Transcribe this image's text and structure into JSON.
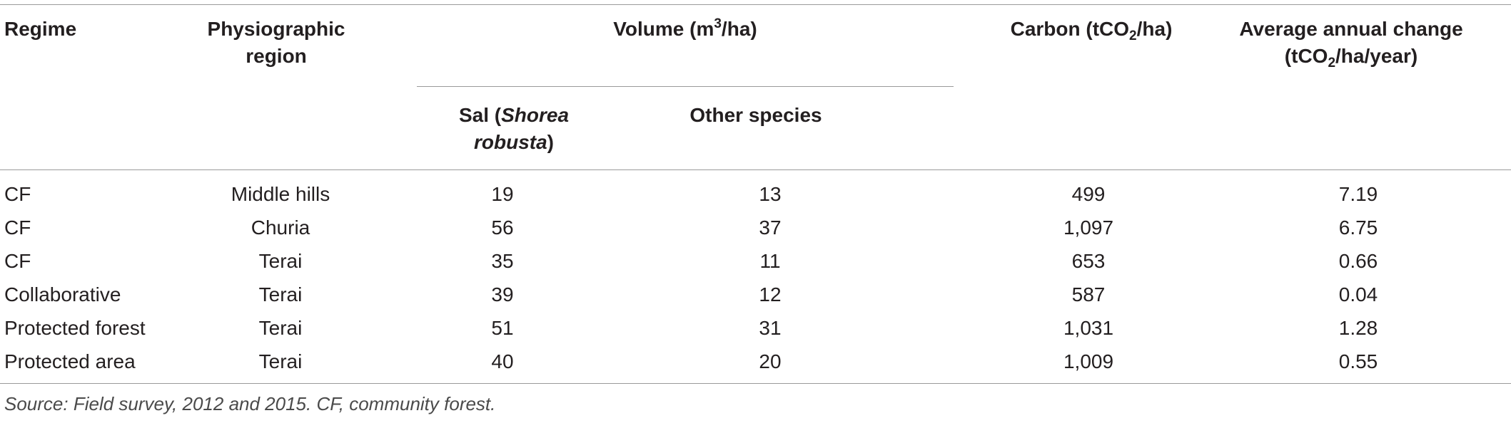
{
  "table": {
    "headers": {
      "regime": "Regime",
      "physiographic_line1": "Physiographic",
      "physiographic_line2": "region",
      "volume_prefix": "Volume (m",
      "volume_sup": "3",
      "volume_suffix": "/ha)",
      "carbon_prefix": "Carbon (tCO",
      "carbon_sub": "2",
      "carbon_suffix": "/ha)",
      "change_line1": "Average annual change",
      "change_line2_prefix": "(tCO",
      "change_line2_sub": "2",
      "change_line2_suffix": "/ha/year)",
      "sal_line1_prefix": "Sal (",
      "sal_line1_italic": "Shorea",
      "sal_line2_italic": "robusta",
      "sal_line2_suffix": ")",
      "other_species": "Other species"
    },
    "rows": [
      {
        "regime": "CF",
        "region": "Middle hills",
        "sal": "19",
        "other": "13",
        "carbon": "499",
        "change": "7.19"
      },
      {
        "regime": "CF",
        "region": "Churia",
        "sal": "56",
        "other": "37",
        "carbon": "1,097",
        "change": "6.75"
      },
      {
        "regime": "CF",
        "region": "Terai",
        "sal": "35",
        "other": "11",
        "carbon": "653",
        "change": "0.66"
      },
      {
        "regime": "Collaborative",
        "region": "Terai",
        "sal": "39",
        "other": "12",
        "carbon": "587",
        "change": "0.04"
      },
      {
        "regime": "Protected forest",
        "region": "Terai",
        "sal": "51",
        "other": "31",
        "carbon": "1,031",
        "change": "1.28"
      },
      {
        "regime": "Protected area",
        "region": "Terai",
        "sal": "40",
        "other": "20",
        "carbon": "1,009",
        "change": "0.55"
      }
    ],
    "footnote": "Source: Field survey, 2012 and 2015. CF, community forest."
  }
}
